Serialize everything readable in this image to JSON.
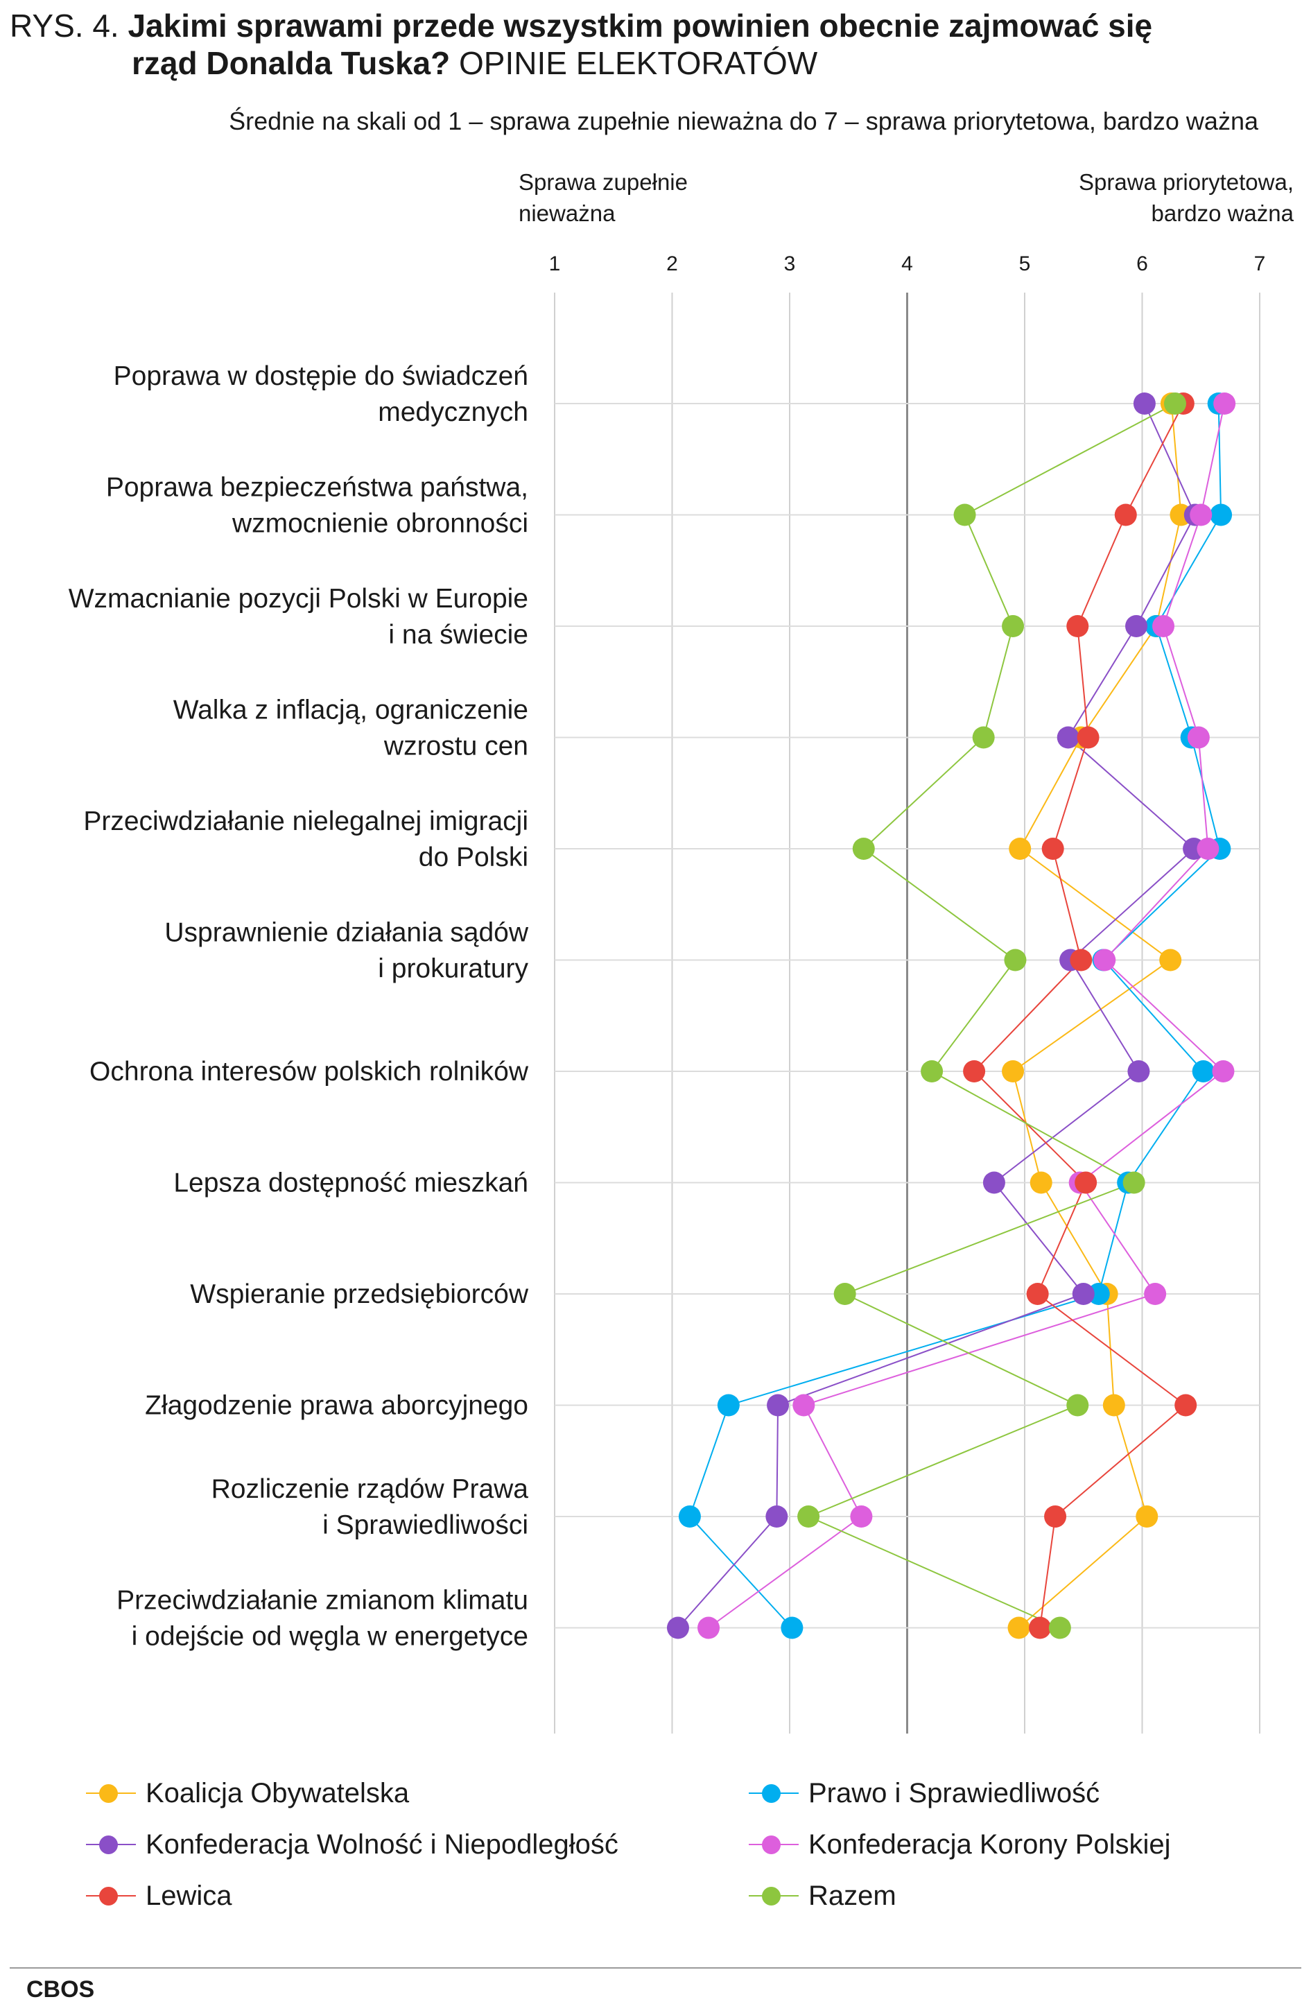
{
  "header": {
    "fig_label": "RYS. 4.",
    "title_line1": "Jakimi sprawami przede wszystkim powinien obecnie zajmować się",
    "title_line2": "rząd Donalda Tuska?",
    "title_suffix": "OPINIE ELEKTORATÓW",
    "subtitle": "Średnie na skali od 1 – sprawa zupełnie nieważna do 7 – sprawa priorytetowa, bardzo ważna"
  },
  "scale_labels": {
    "left_line1": "Sprawa zupełnie",
    "left_line2": "nieważna",
    "right_line1": "Sprawa priorytetowa,",
    "right_line2": "bardzo ważna"
  },
  "colors": {
    "Koalicja Obywatelska": "#FBB917",
    "Prawo i Sprawiedliwość": "#00AEEF",
    "Konfederacja Wolność i Niepodległość": "#8A4FC7",
    "Konfederacja Korony Polskiej": "#DD5FDD",
    "Lewica": "#E8453C",
    "Razem": "#8DC63F"
  },
  "chart_data": {
    "type": "scatter",
    "title": "Jakimi sprawami przede wszystkim powinien obecnie zajmować się rząd Donalda Tuska? OPINIE ELEKTORATÓW",
    "xlim": [
      1,
      7
    ],
    "xticks": [
      "1",
      "2",
      "3",
      "4",
      "5",
      "6",
      "7"
    ],
    "grid": true,
    "legend_position": "bottom",
    "categories": [
      [
        "Poprawa w dostępie do świadczeń",
        "medycznych"
      ],
      [
        "Poprawa bezpieczeństwa państwa,",
        "wzmocnienie obronności"
      ],
      [
        "Wzmacnianie pozycji Polski w Europie",
        "i na świecie"
      ],
      [
        "Walka z inflacją, ograniczenie",
        "wzrostu cen"
      ],
      [
        "Przeciwdziałanie nielegalnej imigracji",
        "do Polski"
      ],
      [
        "Usprawnienie  działania sądów",
        "i prokuratury"
      ],
      [
        "Ochrona interesów polskich rolników"
      ],
      [
        "Lepsza dostępność mieszkań"
      ],
      [
        "Wspieranie przedsiębiorców"
      ],
      [
        "Złagodzenie prawa aborcyjnego"
      ],
      [
        "Rozliczenie rządów Prawa",
        "i Sprawiedliwości"
      ],
      [
        "Przeciwdziałanie zmianom klimatu",
        "i odejście od węgla w energetyce"
      ]
    ],
    "series": [
      {
        "name": "Koalicja Obywatelska",
        "values": [
          6.25,
          6.33,
          6.12,
          5.48,
          4.96,
          6.24,
          4.9,
          5.14,
          5.7,
          5.76,
          6.04,
          4.95
        ]
      },
      {
        "name": "Prawo i Sprawiedliwość",
        "values": [
          6.65,
          6.67,
          6.12,
          6.42,
          6.66,
          5.67,
          6.52,
          5.88,
          5.63,
          2.48,
          2.15,
          3.02
        ]
      },
      {
        "name": "Konfederacja Wolność i Niepodległość",
        "values": [
          6.02,
          6.45,
          5.95,
          5.37,
          6.44,
          5.39,
          5.97,
          4.74,
          5.5,
          2.9,
          2.89,
          2.05
        ]
      },
      {
        "name": "Konfederacja Korony Polskiej",
        "values": [
          6.7,
          6.5,
          6.18,
          6.48,
          6.56,
          5.68,
          6.69,
          5.47,
          6.11,
          3.12,
          3.61,
          2.31
        ]
      },
      {
        "name": "Lewica",
        "values": [
          6.35,
          5.86,
          5.45,
          5.54,
          5.24,
          5.48,
          4.57,
          5.52,
          5.11,
          6.37,
          5.26,
          5.13
        ]
      },
      {
        "name": "Razem",
        "values": [
          6.28,
          4.49,
          4.9,
          4.65,
          3.63,
          4.92,
          4.21,
          5.93,
          3.47,
          5.45,
          3.16,
          5.3
        ]
      }
    ]
  },
  "legend": [
    "Koalicja Obywatelska",
    "Prawo i Sprawiedliwość",
    "Konfederacja Wolność i Niepodległość",
    "Konfederacja Korony Polskiej",
    "Lewica",
    "Razem"
  ],
  "source": "CBOS"
}
